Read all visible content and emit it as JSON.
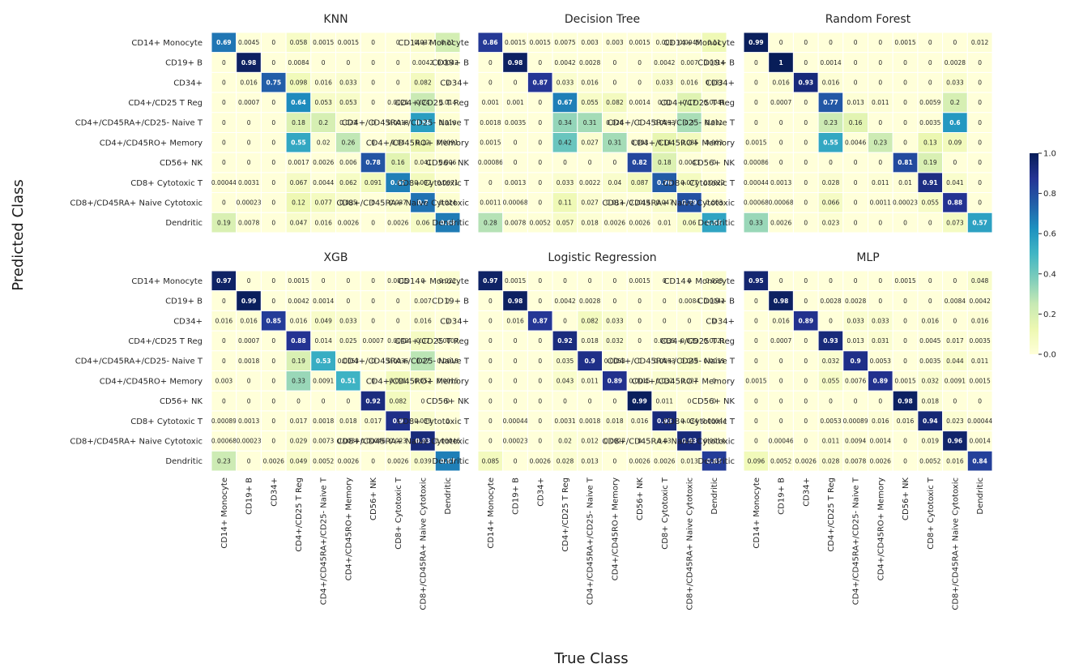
{
  "figure": {
    "xlabel": "True Class",
    "ylabel": "Predicted Class"
  },
  "colorbar": {
    "colormap": "YlGnBu",
    "range": [
      0.0,
      1.0
    ],
    "ticks": [
      "0.0",
      "0.2",
      "0.4",
      "0.6",
      "0.8",
      "1.0"
    ]
  },
  "chart_data": [
    {
      "type": "heatmap",
      "title": "KNN",
      "rows": [
        "CD14+ Monocyte",
        "CD19+ B",
        "CD34+",
        "CD4+/CD25 T Reg",
        "CD4+/CD45RA+/CD25- Naive T",
        "CD4+/CD45RO+ Memory",
        "CD56+ NK",
        "CD8+ Cytotoxic T",
        "CD8+/CD45RA+ Naive Cytotoxic",
        "Dendritic"
      ],
      "columns": [
        "CD14+ Monocyte",
        "CD19+ B",
        "CD34+",
        "CD4+/CD25 T Reg",
        "CD4+/CD45RA+/CD25- Naive T",
        "CD4+/CD45RO+ Memory",
        "CD56+ NK",
        "CD8+ Cytotoxic T",
        "CD8+/CD45RA+ Naive Cytotoxic",
        "Dendritic"
      ],
      "labels": [
        [
          "0.69",
          "0.0045",
          "0",
          "0.058",
          "0.0015",
          "0.0015",
          "0",
          "0",
          "0.037",
          "0.21"
        ],
        [
          "0",
          "0.98",
          "0",
          "0.0084",
          "0",
          "0",
          "0",
          "0",
          "0.0042",
          "0.0042"
        ],
        [
          "0",
          "0.016",
          "0.75",
          "0.098",
          "0.016",
          "0.033",
          "0",
          "0",
          "0.082",
          "0"
        ],
        [
          "0",
          "0.0007",
          "0",
          "0.64",
          "0.053",
          "0.053",
          "0",
          "0.0021",
          "0.24",
          "0.014"
        ],
        [
          "0",
          "0",
          "0",
          "0.18",
          "0.2",
          "0.023",
          "0",
          "0.0018",
          "0.58",
          "0.016"
        ],
        [
          "0",
          "0",
          "0",
          "0.55",
          "0.02",
          "0.26",
          "0",
          "0.04",
          "0.12",
          "0.0091"
        ],
        [
          "0",
          "0",
          "0",
          "0.0017",
          "0.0026",
          "0.006",
          "0.78",
          "0.16",
          "0.041",
          "0.006"
        ],
        [
          "0.00044",
          "0.0031",
          "0",
          "0.067",
          "0.0044",
          "0.062",
          "0.091",
          "0.67",
          "0.092",
          "0.0071"
        ],
        [
          "0",
          "0.00023",
          "0",
          "0.12",
          "0.077",
          "0.035",
          "0",
          "0.037",
          "0.7",
          "0.024"
        ],
        [
          "0.19",
          "0.0078",
          "0",
          "0.047",
          "0.016",
          "0.0026",
          "0",
          "0.0026",
          "0.06",
          "0.68"
        ]
      ]
    },
    {
      "type": "heatmap",
      "title": "Decision Tree",
      "rows": [
        "CD14+ Monocyte",
        "CD19+ B",
        "CD34+",
        "CD4+/CD25 T Reg",
        "CD4+/CD45RA+/CD25- Naive T",
        "CD4+/CD45RO+ Memory",
        "CD56+ NK",
        "CD8+ Cytotoxic T",
        "CD8+/CD45RA+ Naive Cytotoxic",
        "Dendritic"
      ],
      "columns": [
        "CD14+ Monocyte",
        "CD19+ B",
        "CD34+",
        "CD4+/CD25 T Reg",
        "CD4+/CD45RA+/CD25- Naive T",
        "CD4+/CD45RO+ Memory",
        "CD56+ NK",
        "CD8+ Cytotoxic T",
        "CD8+/CD45RA+ Naive Cytotoxic",
        "Dendritic"
      ],
      "labels": [
        [
          "0.86",
          "0.0015",
          "0.0015",
          "0.0075",
          "0.003",
          "0.003",
          "0.0015",
          "0.003",
          "0.0045",
          "0.11"
        ],
        [
          "0",
          "0.98",
          "0",
          "0.0042",
          "0.0028",
          "0",
          "0",
          "0.0042",
          "0.007",
          "0.0014"
        ],
        [
          "0",
          "0",
          "0.87",
          "0.033",
          "0.016",
          "0",
          "0",
          "0.033",
          "0.016",
          "0.033"
        ],
        [
          "0.001",
          "0.001",
          "0",
          "0.67",
          "0.055",
          "0.082",
          "0.0014",
          "0.01",
          "0.17",
          "0.0045"
        ],
        [
          "0.0018",
          "0.0035",
          "0",
          "0.34",
          "0.31",
          "0.026",
          "0",
          "0.0053",
          "0.3",
          "0.011"
        ],
        [
          "0.0015",
          "0",
          "0",
          "0.42",
          "0.027",
          "0.31",
          "0.003",
          "0.14",
          "0.085",
          "0.003"
        ],
        [
          "0.00086",
          "0",
          "0",
          "0",
          "0",
          "0",
          "0.82",
          "0.18",
          "0.0043",
          "0"
        ],
        [
          "0",
          "0.0013",
          "0",
          "0.033",
          "0.0022",
          "0.04",
          "0.087",
          "0.76",
          "0.077",
          "0.0022"
        ],
        [
          "0.0011",
          "0.00068",
          "0",
          "0.11",
          "0.027",
          "0.013",
          "0.0014",
          "0.047",
          "0.79",
          "0.003"
        ],
        [
          "0.28",
          "0.0078",
          "0.0052",
          "0.057",
          "0.018",
          "0.0026",
          "0.0026",
          "0.01",
          "0.06",
          "0.56"
        ]
      ]
    },
    {
      "type": "heatmap",
      "title": "Random Forest",
      "rows": [
        "CD14+ Monocyte",
        "CD19+ B",
        "CD34+",
        "CD4+/CD25 T Reg",
        "CD4+/CD45RA+/CD25- Naive T",
        "CD4+/CD45RO+ Memory",
        "CD56+ NK",
        "CD8+ Cytotoxic T",
        "CD8+/CD45RA+ Naive Cytotoxic",
        "Dendritic"
      ],
      "columns": [
        "CD14+ Monocyte",
        "CD19+ B",
        "CD34+",
        "CD4+/CD25 T Reg",
        "CD4+/CD45RA+/CD25- Naive T",
        "CD4+/CD45RO+ Memory",
        "CD56+ NK",
        "CD8+ Cytotoxic T",
        "CD8+/CD45RA+ Naive Cytotoxic",
        "Dendritic"
      ],
      "labels": [
        [
          "0.99",
          "0",
          "0",
          "0",
          "0",
          "0",
          "0.0015",
          "0",
          "0",
          "0.012"
        ],
        [
          "0",
          "1",
          "0",
          "0.0014",
          "0",
          "0",
          "0",
          "0",
          "0.0028",
          "0"
        ],
        [
          "0",
          "0.016",
          "0.93",
          "0.016",
          "0",
          "0",
          "0",
          "0",
          "0.033",
          "0"
        ],
        [
          "0",
          "0.0007",
          "0",
          "0.77",
          "0.013",
          "0.011",
          "0",
          "0.0059",
          "0.2",
          "0"
        ],
        [
          "0",
          "0",
          "0",
          "0.23",
          "0.16",
          "0",
          "0",
          "0.0035",
          "0.6",
          "0"
        ],
        [
          "0.0015",
          "0",
          "0",
          "0.55",
          "0.0046",
          "0.23",
          "0",
          "0.13",
          "0.09",
          "0"
        ],
        [
          "0.00086",
          "0",
          "0",
          "0",
          "0",
          "0",
          "0.81",
          "0.19",
          "0",
          "0"
        ],
        [
          "0.00044",
          "0.0013",
          "0",
          "0.028",
          "0",
          "0.011",
          "0.01",
          "0.91",
          "0.041",
          "0"
        ],
        [
          "0.00068",
          "0.00068",
          "0",
          "0.066",
          "0",
          "0.0011",
          "0.00023",
          "0.055",
          "0.88",
          "0"
        ],
        [
          "0.33",
          "0.0026",
          "0",
          "0.023",
          "0",
          "0",
          "0",
          "0",
          "0.073",
          "0.57"
        ]
      ]
    },
    {
      "type": "heatmap",
      "title": "XGB",
      "rows": [
        "CD14+ Monocyte",
        "CD19+ B",
        "CD34+",
        "CD4+/CD25 T Reg",
        "CD4+/CD45RA+/CD25- Naive T",
        "CD4+/CD45RO+ Memory",
        "CD56+ NK",
        "CD8+ Cytotoxic T",
        "CD8+/CD45RA+ Naive Cytotoxic",
        "Dendritic"
      ],
      "columns": [
        "CD14+ Monocyte",
        "CD19+ B",
        "CD34+",
        "CD4+/CD25 T Reg",
        "CD4+/CD45RA+/CD25- Naive T",
        "CD4+/CD45RO+ Memory",
        "CD56+ NK",
        "CD8+ Cytotoxic T",
        "CD8+/CD45RA+ Naive Cytotoxic",
        "Dendritic"
      ],
      "labels": [
        [
          "0.97",
          "0",
          "0",
          "0.0015",
          "0",
          "0",
          "0",
          "0.0015",
          "0",
          "0.022"
        ],
        [
          "0",
          "0.99",
          "0",
          "0.0042",
          "0.0014",
          "0",
          "0",
          "0",
          "0.007",
          "0"
        ],
        [
          "0.016",
          "0.016",
          "0.85",
          "0.016",
          "0.049",
          "0.033",
          "0",
          "0",
          "0.016",
          "0"
        ],
        [
          "0",
          "0.0007",
          "0",
          "0.88",
          "0.014",
          "0.025",
          "0.0007",
          "0.0042",
          "0.07",
          "0.0007"
        ],
        [
          "0",
          "0.0018",
          "0",
          "0.19",
          "0.53",
          "0.0053",
          "0",
          "0.0035",
          "0.27",
          "0.0018"
        ],
        [
          "0.003",
          "0",
          "0",
          "0.33",
          "0.0091",
          "0.51",
          "0",
          "0.091",
          "0.052",
          "0.0015"
        ],
        [
          "0",
          "0",
          "0",
          "0",
          "0",
          "0",
          "0.92",
          "0.082",
          "0",
          "0"
        ],
        [
          "0.00089",
          "0.0013",
          "0",
          "0.017",
          "0.0018",
          "0.018",
          "0.017",
          "0.9",
          "0.039",
          "0"
        ],
        [
          "0.00068",
          "0.00023",
          "0",
          "0.029",
          "0.0073",
          "0.0039",
          "0.00046",
          "0.023",
          "0.93",
          "0.00046"
        ],
        [
          "0.23",
          "0",
          "0.0026",
          "0.049",
          "0.0052",
          "0.0026",
          "0",
          "0.0026",
          "0.039",
          "0.67"
        ]
      ]
    },
    {
      "type": "heatmap",
      "title": "Logistic Regression",
      "rows": [
        "CD14+ Monocyte",
        "CD19+ B",
        "CD34+",
        "CD4+/CD25 T Reg",
        "CD4+/CD45RA+/CD25- Naive T",
        "CD4+/CD45RO+ Memory",
        "CD56+ NK",
        "CD8+ Cytotoxic T",
        "CD8+/CD45RA+ Naive Cytotoxic",
        "Dendritic"
      ],
      "columns": [
        "CD14+ Monocyte",
        "CD19+ B",
        "CD34+",
        "CD4+/CD25 T Reg",
        "CD4+/CD45RA+/CD25- Naive T",
        "CD4+/CD45RO+ Memory",
        "CD56+ NK",
        "CD8+ Cytotoxic T",
        "CD8+/CD45RA+ Naive Cytotoxic",
        "Dendritic"
      ],
      "labels": [
        [
          "0.97",
          "0.0015",
          "0",
          "0",
          "0",
          "0",
          "0.0015",
          "0",
          "0",
          "0.028"
        ],
        [
          "0",
          "0.98",
          "0",
          "0.0042",
          "0.0028",
          "0",
          "0",
          "0",
          "0.0084",
          "0.0042"
        ],
        [
          "0",
          "0.016",
          "0.87",
          "0",
          "0.082",
          "0.033",
          "0",
          "0",
          "0",
          "0"
        ],
        [
          "0",
          "0",
          "0",
          "0.92",
          "0.018",
          "0.032",
          "0",
          "0.0035",
          "0.029",
          "0.0021"
        ],
        [
          "0",
          "0",
          "0",
          "0.035",
          "0.9",
          "0.0053",
          "0",
          "0.0053",
          "0.049",
          "0.0035"
        ],
        [
          "0",
          "0",
          "0",
          "0.043",
          "0.011",
          "0.89",
          "0.0015",
          "0.032",
          "0.027",
          "0"
        ],
        [
          "0",
          "0",
          "0",
          "0",
          "0",
          "0",
          "0.99",
          "0.011",
          "0",
          "0"
        ],
        [
          "0",
          "0.00044",
          "0",
          "0.0031",
          "0.0018",
          "0.018",
          "0.016",
          "0.93",
          "0.034",
          "0.00044"
        ],
        [
          "0",
          "0.00023",
          "0",
          "0.02",
          "0.012",
          "0.0027",
          "0",
          "0.03",
          "0.93",
          "0.0014"
        ],
        [
          "0.085",
          "0",
          "0.0026",
          "0.028",
          "0.013",
          "0",
          "0.0026",
          "0.0026",
          "0.013",
          "0.85"
        ]
      ]
    },
    {
      "type": "heatmap",
      "title": "MLP",
      "rows": [
        "CD14+ Monocyte",
        "CD19+ B",
        "CD34+",
        "CD4+/CD25 T Reg",
        "CD4+/CD45RA+/CD25- Naive T",
        "CD4+/CD45RO+ Memory",
        "CD56+ NK",
        "CD8+ Cytotoxic T",
        "CD8+/CD45RA+ Naive Cytotoxic",
        "Dendritic"
      ],
      "columns": [
        "CD14+ Monocyte",
        "CD19+ B",
        "CD34+",
        "CD4+/CD25 T Reg",
        "CD4+/CD45RA+/CD25- Naive T",
        "CD4+/CD45RO+ Memory",
        "CD56+ NK",
        "CD8+ Cytotoxic T",
        "CD8+/CD45RA+ Naive Cytotoxic",
        "Dendritic"
      ],
      "labels": [
        [
          "0.95",
          "0",
          "0",
          "0",
          "0",
          "0",
          "0.0015",
          "0",
          "0",
          "0.048"
        ],
        [
          "0",
          "0.98",
          "0",
          "0.0028",
          "0.0028",
          "0",
          "0",
          "0",
          "0.0084",
          "0.0042"
        ],
        [
          "0",
          "0.016",
          "0.89",
          "0",
          "0.033",
          "0.033",
          "0",
          "0.016",
          "0",
          "0.016"
        ],
        [
          "0",
          "0.0007",
          "0",
          "0.93",
          "0.013",
          "0.031",
          "0",
          "0.0045",
          "0.017",
          "0.0035"
        ],
        [
          "0",
          "0",
          "0",
          "0.032",
          "0.9",
          "0.0053",
          "0",
          "0.0035",
          "0.044",
          "0.011"
        ],
        [
          "0.0015",
          "0",
          "0",
          "0.055",
          "0.0076",
          "0.89",
          "0.0015",
          "0.032",
          "0.0091",
          "0.0015"
        ],
        [
          "0",
          "0",
          "0",
          "0",
          "0",
          "0",
          "0.98",
          "0.018",
          "0",
          "0"
        ],
        [
          "0",
          "0",
          "0",
          "0.0053",
          "0.00089",
          "0.016",
          "0.016",
          "0.94",
          "0.023",
          "0.00044"
        ],
        [
          "0",
          "0.00046",
          "0",
          "0.011",
          "0.0094",
          "0.0014",
          "0",
          "0.019",
          "0.96",
          "0.0014"
        ],
        [
          "0.096",
          "0.0052",
          "0.0026",
          "0.028",
          "0.0078",
          "0.0026",
          "0",
          "0.0052",
          "0.016",
          "0.84"
        ]
      ]
    }
  ]
}
